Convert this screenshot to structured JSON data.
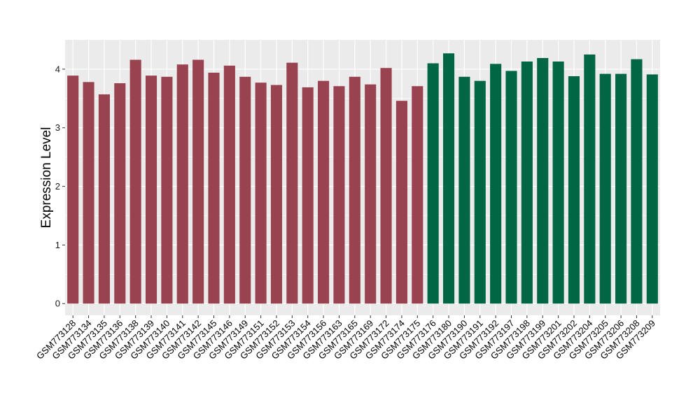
{
  "chart_data": {
    "type": "bar",
    "title": "",
    "xlabel": "",
    "ylabel": "Expression Level",
    "ylim": [
      -0.2,
      4.5
    ],
    "yticks": [
      0,
      1,
      2,
      3,
      4
    ],
    "grid": true,
    "legend": "none",
    "panel_background": "#ebebeb",
    "grid_color": "#ffffff",
    "categories": [
      "GSM773128",
      "GSM773134",
      "GSM773135",
      "GSM773136",
      "GSM773138",
      "GSM773139",
      "GSM773140",
      "GSM773141",
      "GSM773142",
      "GSM773145",
      "GSM773146",
      "GSM773149",
      "GSM773151",
      "GSM773152",
      "GSM773153",
      "GSM773154",
      "GSM773156",
      "GSM773163",
      "GSM773165",
      "GSM773169",
      "GSM773172",
      "GSM773174",
      "GSM773175",
      "GSM773176",
      "GSM773180",
      "GSM773190",
      "GSM773191",
      "GSM773192",
      "GSM773197",
      "GSM773198",
      "GSM773199",
      "GSM773201",
      "GSM773202",
      "GSM773204",
      "GSM773205",
      "GSM773206",
      "GSM773208",
      "GSM773209"
    ],
    "values": [
      3.89,
      3.78,
      3.57,
      3.76,
      4.16,
      3.89,
      3.87,
      4.08,
      4.16,
      3.94,
      4.06,
      3.87,
      3.77,
      3.73,
      4.11,
      3.69,
      3.8,
      3.71,
      3.87,
      3.74,
      4.02,
      3.46,
      3.71,
      4.1,
      4.27,
      3.87,
      3.8,
      4.09,
      3.97,
      4.13,
      4.19,
      4.13,
      3.88,
      4.25,
      3.92,
      3.92,
      4.17,
      3.91
    ],
    "colors": [
      "#9a4350",
      "#9a4350",
      "#9a4350",
      "#9a4350",
      "#9a4350",
      "#9a4350",
      "#9a4350",
      "#9a4350",
      "#9a4350",
      "#9a4350",
      "#9a4350",
      "#9a4350",
      "#9a4350",
      "#9a4350",
      "#9a4350",
      "#9a4350",
      "#9a4350",
      "#9a4350",
      "#9a4350",
      "#9a4350",
      "#9a4350",
      "#9a4350",
      "#9a4350",
      "#006644",
      "#006644",
      "#006644",
      "#006644",
      "#006644",
      "#006644",
      "#006644",
      "#006644",
      "#006644",
      "#006644",
      "#006644",
      "#006644",
      "#006644",
      "#006644",
      "#006644"
    ]
  }
}
